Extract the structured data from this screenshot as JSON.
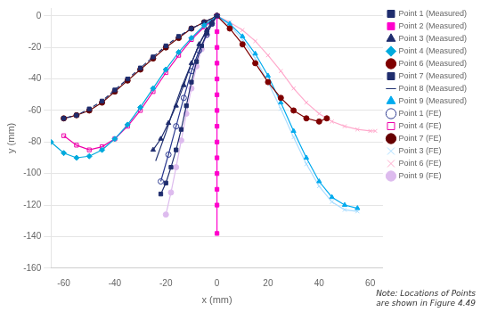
{
  "chart_data": {
    "type": "line",
    "xlabel": "x (mm)",
    "ylabel": "y (mm)",
    "xlim": [
      -65,
      65
    ],
    "ylim": [
      -160,
      5
    ],
    "xticks": [
      -60,
      -40,
      -20,
      0,
      20,
      40,
      60
    ],
    "yticks": [
      0,
      -20,
      -40,
      -60,
      -80,
      -100,
      -120,
      -140,
      -160
    ],
    "grid": "y",
    "legend": "right",
    "annotations": [
      "Note: Locations of Points\nare shown in Figure 4.49"
    ],
    "series": [
      {
        "name": "Point 1 (Measured)",
        "color": "#1f2d6e",
        "marker": "square",
        "line_style": "solid",
        "x": [
          0,
          -2,
          -4,
          -6,
          -8,
          -10,
          -12,
          -14,
          -16,
          -18,
          -20,
          -22
        ],
        "values": [
          0,
          -5,
          -11,
          -19,
          -29,
          -42,
          -57,
          -72,
          -85,
          -96,
          -106,
          -113
        ]
      },
      {
        "name": "Point 2 (Measured)",
        "color": "#ff00cc",
        "marker": "square",
        "line_style": "solid",
        "x": [
          0,
          0,
          0,
          0,
          0,
          0,
          0,
          0,
          0,
          0,
          0,
          0,
          0,
          0
        ],
        "values": [
          0,
          -10,
          -20,
          -30,
          -40,
          -50,
          -60,
          -70,
          -80,
          -90,
          -100,
          -110,
          -120,
          -138
        ]
      },
      {
        "name": "Point 3 (Measured)",
        "color": "#1f2d6e",
        "marker": "triangle",
        "line_style": "solid",
        "x": [
          0,
          -2,
          -4,
          -7,
          -10,
          -13,
          -16,
          -19,
          -22,
          -25
        ],
        "values": [
          0,
          -4,
          -9,
          -18,
          -30,
          -44,
          -57,
          -68,
          -78,
          -85
        ]
      },
      {
        "name": "Point 4 (Measured)",
        "color": "#00aadd",
        "marker": "diamond",
        "line_style": "solid",
        "x": [
          0,
          -5,
          -10,
          -15,
          -20,
          -25,
          -30,
          -35,
          -40,
          -45,
          -50,
          -55,
          -60,
          -65
        ],
        "values": [
          0,
          -6,
          -14,
          -23,
          -34,
          -46,
          -58,
          -69,
          -78,
          -85,
          -89,
          -90,
          -87,
          -80
        ]
      },
      {
        "name": "Point 6 (Measured)",
        "color": "#7f0000",
        "marker": "circle",
        "line_style": "solid",
        "x": [
          0,
          5,
          10,
          15,
          20,
          25,
          30,
          35,
          40,
          43
        ],
        "values": [
          0,
          -8,
          -18,
          -30,
          -42,
          -52,
          -60,
          -65,
          -67,
          -65
        ]
      },
      {
        "name": "Point 7 (Measured)",
        "color": "#1f2d6e",
        "marker": "square",
        "line_style": "dashed",
        "x": [
          0,
          -5,
          -10,
          -15,
          -20,
          -25,
          -30,
          -35,
          -40,
          -45,
          -50,
          -55,
          -60
        ],
        "values": [
          0,
          -4,
          -8,
          -13,
          -19,
          -26,
          -33,
          -40,
          -47,
          -54,
          -59,
          -63,
          -65
        ]
      },
      {
        "name": "Point 8 (Measured)",
        "color": "#1f3070",
        "marker": "none",
        "line_style": "solid",
        "x": [
          0,
          -2,
          -4,
          -6,
          -8,
          -10,
          -12,
          -14,
          -16,
          -18,
          -20,
          -22,
          -24
        ],
        "values": [
          0,
          -4,
          -9,
          -15,
          -22,
          -30,
          -38,
          -46,
          -55,
          -64,
          -74,
          -83,
          -92
        ]
      },
      {
        "name": "Point 9 (Measured)",
        "color": "#00aaee",
        "marker": "triangle",
        "line_style": "solid",
        "x": [
          0,
          5,
          10,
          15,
          20,
          25,
          30,
          35,
          40,
          45,
          50,
          55
        ],
        "values": [
          0,
          -5,
          -13,
          -24,
          -38,
          -55,
          -73,
          -90,
          -105,
          -115,
          -120,
          -122
        ]
      },
      {
        "name": "Point 1 (FE)",
        "color": "#2b3990",
        "marker": "circle-open",
        "line_style": "solid",
        "x": [
          0,
          -2,
          -4,
          -7,
          -10,
          -13,
          -16,
          -19,
          -22
        ],
        "values": [
          0,
          -5,
          -12,
          -22,
          -35,
          -52,
          -70,
          -88,
          -105
        ]
      },
      {
        "name": "Point 4 (FE)",
        "color": "#ee00aa",
        "marker": "square-open",
        "line_style": "solid",
        "x": [
          0,
          -5,
          -10,
          -15,
          -20,
          -25,
          -30,
          -35,
          -40,
          -45,
          -50,
          -55,
          -60
        ],
        "values": [
          0,
          -7,
          -15,
          -25,
          -36,
          -48,
          -60,
          -70,
          -78,
          -83,
          -85,
          -82,
          -76
        ]
      },
      {
        "name": "Point 7 (FE)",
        "color": "#660000",
        "marker": "circle",
        "line_style": "solid",
        "x": [
          0,
          -5,
          -10,
          -15,
          -20,
          -25,
          -30,
          -35,
          -40,
          -45,
          -50,
          -55,
          -60
        ],
        "values": [
          0,
          -4,
          -8,
          -14,
          -20,
          -27,
          -34,
          -41,
          -48,
          -55,
          -60,
          -63,
          -65
        ]
      },
      {
        "name": "Point 3 (FE)",
        "color": "#aaddff",
        "marker": "x",
        "line_style": "solid",
        "x": [
          0,
          5,
          10,
          15,
          20,
          25,
          30,
          35,
          40,
          45,
          50,
          55
        ],
        "values": [
          0,
          -6,
          -15,
          -27,
          -42,
          -59,
          -77,
          -94,
          -108,
          -118,
          -123,
          -124
        ]
      },
      {
        "name": "Point 6 (FE)",
        "color": "#ffaacc",
        "marker": "x",
        "line_style": "solid",
        "x": [
          0,
          5,
          10,
          15,
          20,
          25,
          30,
          35,
          40,
          45,
          50,
          55,
          60,
          62
        ],
        "values": [
          0,
          -4,
          -9,
          -16,
          -25,
          -35,
          -46,
          -55,
          -62,
          -67,
          -70,
          -72,
          -73,
          -73
        ]
      },
      {
        "name": "Point 9 (FE)",
        "color": "#ddbbee",
        "marker": "circle",
        "line_style": "solid",
        "x": [
          0,
          -2,
          -4,
          -6,
          -8,
          -10,
          -12,
          -14,
          -16,
          -18,
          -20
        ],
        "values": [
          0,
          -5,
          -12,
          -21,
          -32,
          -46,
          -62,
          -79,
          -96,
          -112,
          -126
        ]
      }
    ]
  }
}
